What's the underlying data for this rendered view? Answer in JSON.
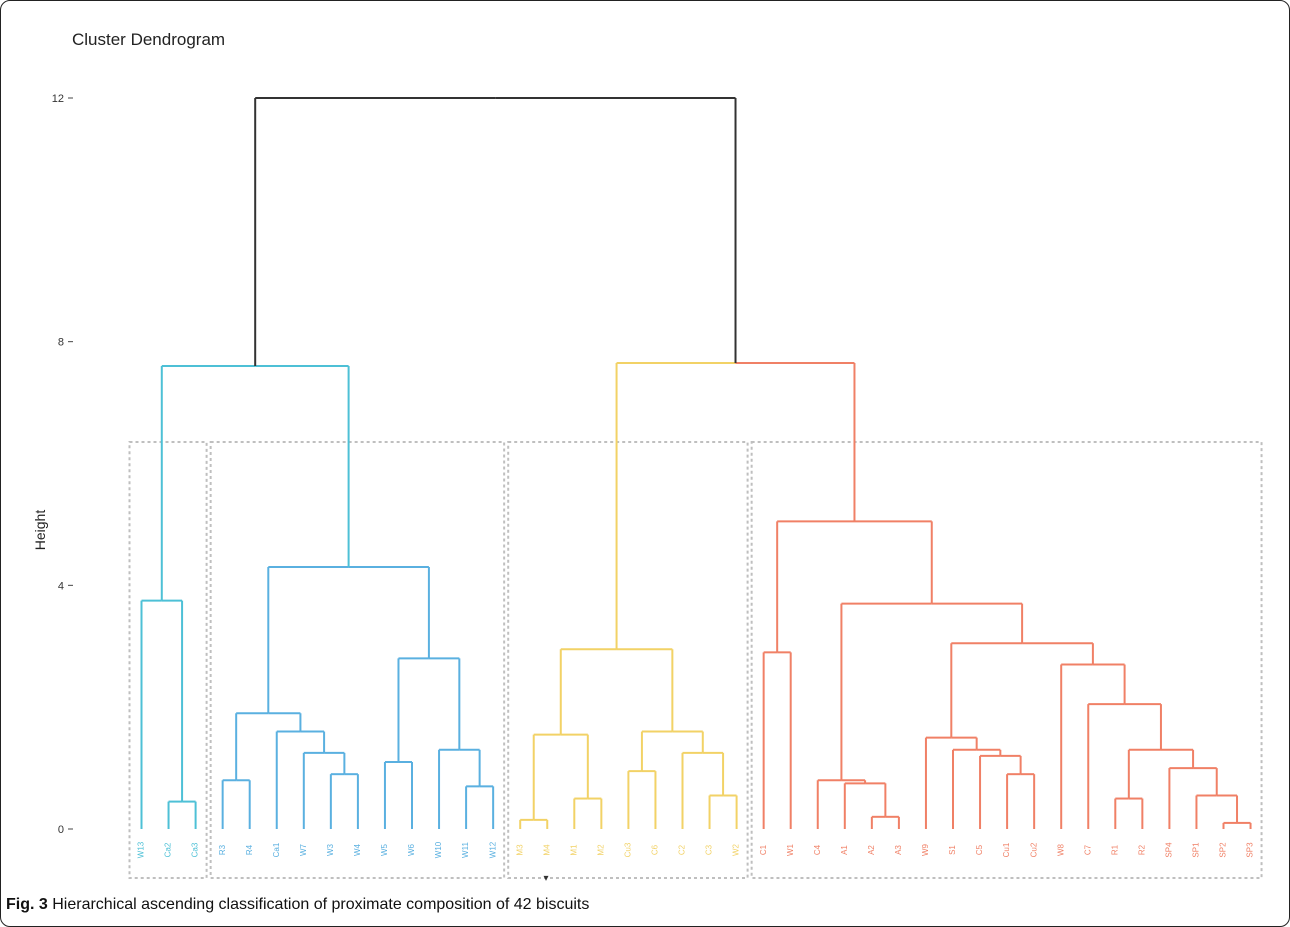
{
  "caption": {
    "label": "Fig. 3",
    "text": "Hierarchical ascending classification of proximate composition of 42 biscuits"
  },
  "chart_data": {
    "type": "dendrogram",
    "title": "Cluster Dendrogram",
    "ylabel": "Height",
    "xlabel": "",
    "ylim": [
      0,
      12
    ],
    "yticks": [
      "0",
      "4",
      "8",
      "12"
    ],
    "grid": false,
    "colors": {
      "root": "#333333",
      "cluster_1": "#4dc0d6",
      "cluster_2": "#5ab0e0",
      "cluster_3": "#f2d266",
      "cluster_4": "#f08066",
      "box": "#bfbfbf"
    },
    "leaves": [
      {
        "label": "W13",
        "cluster": 1
      },
      {
        "label": "Ca2",
        "cluster": 1
      },
      {
        "label": "Ca3",
        "cluster": 1
      },
      {
        "label": "R3",
        "cluster": 2
      },
      {
        "label": "R4",
        "cluster": 2
      },
      {
        "label": "Ca1",
        "cluster": 2
      },
      {
        "label": "W7",
        "cluster": 2
      },
      {
        "label": "W3",
        "cluster": 2
      },
      {
        "label": "W4",
        "cluster": 2
      },
      {
        "label": "W5",
        "cluster": 2
      },
      {
        "label": "W6",
        "cluster": 2
      },
      {
        "label": "W10",
        "cluster": 2
      },
      {
        "label": "W11",
        "cluster": 2
      },
      {
        "label": "W12",
        "cluster": 2
      },
      {
        "label": "M3",
        "cluster": 3
      },
      {
        "label": "M4",
        "cluster": 3
      },
      {
        "label": "M1",
        "cluster": 3
      },
      {
        "label": "M2",
        "cluster": 3
      },
      {
        "label": "Cu3",
        "cluster": 3
      },
      {
        "label": "C6",
        "cluster": 3
      },
      {
        "label": "C2",
        "cluster": 3
      },
      {
        "label": "C3",
        "cluster": 3
      },
      {
        "label": "W2",
        "cluster": 3
      },
      {
        "label": "C1",
        "cluster": 4
      },
      {
        "label": "W1",
        "cluster": 4
      },
      {
        "label": "C4",
        "cluster": 4
      },
      {
        "label": "A1",
        "cluster": 4
      },
      {
        "label": "A2",
        "cluster": 4
      },
      {
        "label": "A3",
        "cluster": 4
      },
      {
        "label": "W9",
        "cluster": 4
      },
      {
        "label": "S1",
        "cluster": 4
      },
      {
        "label": "C5",
        "cluster": 4
      },
      {
        "label": "Cu1",
        "cluster": 4
      },
      {
        "label": "Cu2",
        "cluster": 4
      },
      {
        "label": "W8",
        "cluster": 4
      },
      {
        "label": "C7",
        "cluster": 4
      },
      {
        "label": "R1",
        "cluster": 4
      },
      {
        "label": "R2",
        "cluster": 4
      },
      {
        "label": "SP4",
        "cluster": 4
      },
      {
        "label": "SP1",
        "cluster": 4
      },
      {
        "label": "SP2",
        "cluster": 4
      },
      {
        "label": "SP3",
        "cluster": 4
      }
    ],
    "merges": [
      {
        "a": "Ca2",
        "b": "Ca3",
        "height": 0.45
      },
      {
        "a": "W13",
        "b": "Ca2+Ca3",
        "height": 3.75
      },
      {
        "a": "R3",
        "b": "R4",
        "height": 0.8
      },
      {
        "a": "W3",
        "b": "W4",
        "height": 0.9
      },
      {
        "a": "W7",
        "b": "W3+W4",
        "height": 1.25
      },
      {
        "a": "Ca1",
        "b": "W7+W3+W4",
        "height": 1.6
      },
      {
        "a": "R3+R4",
        "b": "Ca1+W7+W3+W4",
        "height": 1.9
      },
      {
        "a": "W5",
        "b": "W6",
        "height": 1.1
      },
      {
        "a": "W11",
        "b": "W12",
        "height": 0.7
      },
      {
        "a": "W10",
        "b": "W11+W12",
        "height": 1.3
      },
      {
        "a": "W5+W6",
        "b": "W10+W11+W12",
        "height": 2.8
      },
      {
        "a": "R3..W4",
        "b": "W5..W12",
        "height": 4.3
      },
      {
        "a": "W13..Ca3",
        "b": "R3..W12",
        "height": 7.6
      },
      {
        "a": "M3",
        "b": "M4",
        "height": 0.15
      },
      {
        "a": "M1",
        "b": "M2",
        "height": 0.5
      },
      {
        "a": "M3+M4",
        "b": "M1+M2",
        "height": 1.55
      },
      {
        "a": "Cu3",
        "b": "C6",
        "height": 0.95
      },
      {
        "a": "C3",
        "b": "W2",
        "height": 0.55
      },
      {
        "a": "C2",
        "b": "C3+W2",
        "height": 1.25
      },
      {
        "a": "Cu3+C6",
        "b": "C2+C3+W2",
        "height": 1.6
      },
      {
        "a": "M3..M2",
        "b": "Cu3..W2",
        "height": 2.95
      },
      {
        "a": "C1",
        "b": "W1",
        "height": 2.9
      },
      {
        "a": "A2",
        "b": "A3",
        "height": 0.2
      },
      {
        "a": "A1",
        "b": "A2+A3",
        "height": 0.75
      },
      {
        "a": "C4",
        "b": "A1+A2+A3",
        "height": 0.8
      },
      {
        "a": "Cu1",
        "b": "Cu2",
        "height": 0.9
      },
      {
        "a": "C5",
        "b": "Cu1+Cu2",
        "height": 1.2
      },
      {
        "a": "S1",
        "b": "C5+Cu1+Cu2",
        "height": 1.3
      },
      {
        "a": "W9",
        "b": "S1..Cu2",
        "height": 1.5
      },
      {
        "a": "R1",
        "b": "R2",
        "height": 0.5
      },
      {
        "a": "SP2",
        "b": "SP3",
        "height": 0.1
      },
      {
        "a": "SP1",
        "b": "SP2+SP3",
        "height": 0.55
      },
      {
        "a": "SP4",
        "b": "SP1+SP2+SP3",
        "height": 1.0
      },
      {
        "a": "R1+R2",
        "b": "SP4..SP3",
        "height": 1.3
      },
      {
        "a": "C7",
        "b": "R1..SP3",
        "height": 2.05
      },
      {
        "a": "W8",
        "b": "C7..SP3",
        "height": 2.7
      },
      {
        "a": "W9..Cu2",
        "b": "W8..SP3",
        "height": 3.05
      },
      {
        "a": "C4..A3",
        "b": "W9..SP3",
        "height": 3.7
      },
      {
        "a": "C1+W1",
        "b": "C4..SP3",
        "height": 5.05
      },
      {
        "a": "M3..W2",
        "b": "C1..SP3",
        "height": 7.65
      },
      {
        "a": "cluster_1_2",
        "b": "cluster_3_4",
        "height": 12.0
      }
    ]
  }
}
